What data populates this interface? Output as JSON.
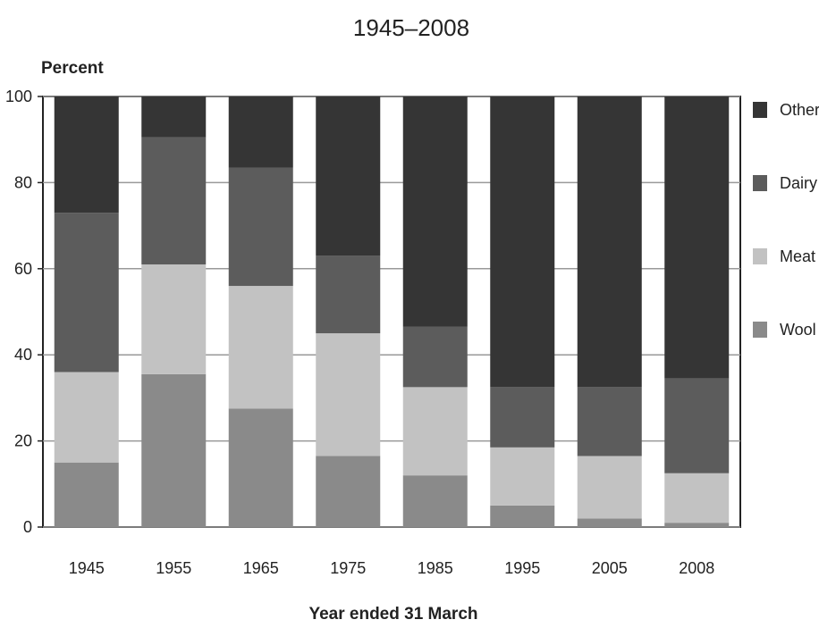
{
  "chart_data": {
    "type": "bar",
    "stacked": true,
    "title": "1945–2008",
    "ylabel": "Percent",
    "xlabel": "Year ended 31 March",
    "ylim": [
      0,
      100
    ],
    "yticks": [
      "0",
      "20",
      "40",
      "60",
      "80",
      "100"
    ],
    "grid": true,
    "legend_position": "right",
    "categories": [
      "1945",
      "1955",
      "1965",
      "1975",
      "1985",
      "1995",
      "2005",
      "2008"
    ],
    "series": [
      {
        "name": "Wool",
        "color": "#8a8a8a",
        "values": [
          15,
          35.5,
          27.5,
          16.5,
          12,
          5,
          2,
          1
        ]
      },
      {
        "name": "Meat",
        "color": "#c2c2c2",
        "values": [
          21,
          25.5,
          28.5,
          28.5,
          20.5,
          13.5,
          14.5,
          11.5
        ]
      },
      {
        "name": "Dairy",
        "color": "#5c5c5c",
        "values": [
          37,
          29.5,
          27.5,
          18,
          14,
          14,
          16,
          22
        ]
      },
      {
        "name": "Other",
        "color": "#353535",
        "values": [
          27,
          9.5,
          16.5,
          37,
          53.5,
          67.5,
          67.5,
          65.5
        ]
      }
    ]
  }
}
